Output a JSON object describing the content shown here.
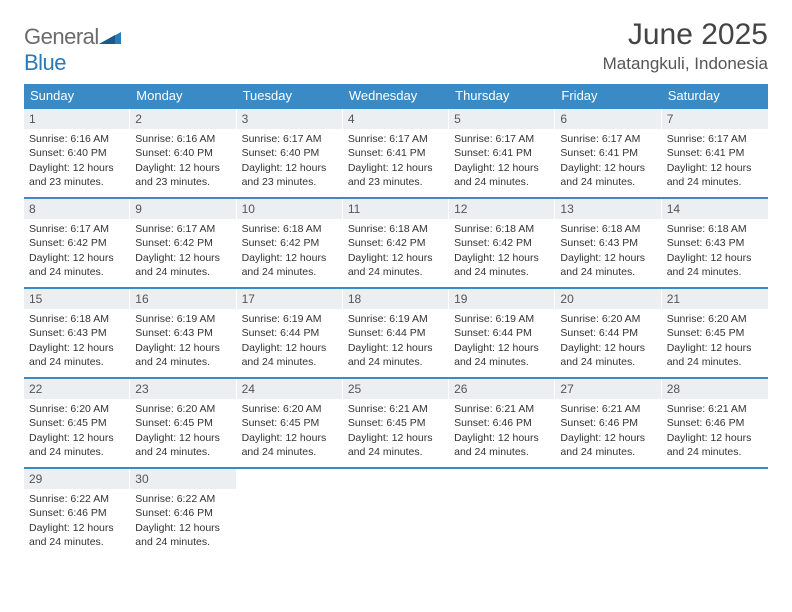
{
  "logo": {
    "text_gray": "General",
    "text_blue": "Blue"
  },
  "header": {
    "title": "June 2025",
    "location": "Matangkuli, Indonesia"
  },
  "colors": {
    "header_bg": "#3a8ac6",
    "row_border": "#3a8ac6",
    "daynum_bg": "#eceff1",
    "logo_gray": "#6b6b6b",
    "logo_blue": "#2a7ab8"
  },
  "weekdays": [
    "Sunday",
    "Monday",
    "Tuesday",
    "Wednesday",
    "Thursday",
    "Friday",
    "Saturday"
  ],
  "weeks": [
    [
      {
        "n": "1",
        "sr": "Sunrise: 6:16 AM",
        "ss": "Sunset: 6:40 PM",
        "dl": "Daylight: 12 hours and 23 minutes."
      },
      {
        "n": "2",
        "sr": "Sunrise: 6:16 AM",
        "ss": "Sunset: 6:40 PM",
        "dl": "Daylight: 12 hours and 23 minutes."
      },
      {
        "n": "3",
        "sr": "Sunrise: 6:17 AM",
        "ss": "Sunset: 6:40 PM",
        "dl": "Daylight: 12 hours and 23 minutes."
      },
      {
        "n": "4",
        "sr": "Sunrise: 6:17 AM",
        "ss": "Sunset: 6:41 PM",
        "dl": "Daylight: 12 hours and 23 minutes."
      },
      {
        "n": "5",
        "sr": "Sunrise: 6:17 AM",
        "ss": "Sunset: 6:41 PM",
        "dl": "Daylight: 12 hours and 24 minutes."
      },
      {
        "n": "6",
        "sr": "Sunrise: 6:17 AM",
        "ss": "Sunset: 6:41 PM",
        "dl": "Daylight: 12 hours and 24 minutes."
      },
      {
        "n": "7",
        "sr": "Sunrise: 6:17 AM",
        "ss": "Sunset: 6:41 PM",
        "dl": "Daylight: 12 hours and 24 minutes."
      }
    ],
    [
      {
        "n": "8",
        "sr": "Sunrise: 6:17 AM",
        "ss": "Sunset: 6:42 PM",
        "dl": "Daylight: 12 hours and 24 minutes."
      },
      {
        "n": "9",
        "sr": "Sunrise: 6:17 AM",
        "ss": "Sunset: 6:42 PM",
        "dl": "Daylight: 12 hours and 24 minutes."
      },
      {
        "n": "10",
        "sr": "Sunrise: 6:18 AM",
        "ss": "Sunset: 6:42 PM",
        "dl": "Daylight: 12 hours and 24 minutes."
      },
      {
        "n": "11",
        "sr": "Sunrise: 6:18 AM",
        "ss": "Sunset: 6:42 PM",
        "dl": "Daylight: 12 hours and 24 minutes."
      },
      {
        "n": "12",
        "sr": "Sunrise: 6:18 AM",
        "ss": "Sunset: 6:42 PM",
        "dl": "Daylight: 12 hours and 24 minutes."
      },
      {
        "n": "13",
        "sr": "Sunrise: 6:18 AM",
        "ss": "Sunset: 6:43 PM",
        "dl": "Daylight: 12 hours and 24 minutes."
      },
      {
        "n": "14",
        "sr": "Sunrise: 6:18 AM",
        "ss": "Sunset: 6:43 PM",
        "dl": "Daylight: 12 hours and 24 minutes."
      }
    ],
    [
      {
        "n": "15",
        "sr": "Sunrise: 6:18 AM",
        "ss": "Sunset: 6:43 PM",
        "dl": "Daylight: 12 hours and 24 minutes."
      },
      {
        "n": "16",
        "sr": "Sunrise: 6:19 AM",
        "ss": "Sunset: 6:43 PM",
        "dl": "Daylight: 12 hours and 24 minutes."
      },
      {
        "n": "17",
        "sr": "Sunrise: 6:19 AM",
        "ss": "Sunset: 6:44 PM",
        "dl": "Daylight: 12 hours and 24 minutes."
      },
      {
        "n": "18",
        "sr": "Sunrise: 6:19 AM",
        "ss": "Sunset: 6:44 PM",
        "dl": "Daylight: 12 hours and 24 minutes."
      },
      {
        "n": "19",
        "sr": "Sunrise: 6:19 AM",
        "ss": "Sunset: 6:44 PM",
        "dl": "Daylight: 12 hours and 24 minutes."
      },
      {
        "n": "20",
        "sr": "Sunrise: 6:20 AM",
        "ss": "Sunset: 6:44 PM",
        "dl": "Daylight: 12 hours and 24 minutes."
      },
      {
        "n": "21",
        "sr": "Sunrise: 6:20 AM",
        "ss": "Sunset: 6:45 PM",
        "dl": "Daylight: 12 hours and 24 minutes."
      }
    ],
    [
      {
        "n": "22",
        "sr": "Sunrise: 6:20 AM",
        "ss": "Sunset: 6:45 PM",
        "dl": "Daylight: 12 hours and 24 minutes."
      },
      {
        "n": "23",
        "sr": "Sunrise: 6:20 AM",
        "ss": "Sunset: 6:45 PM",
        "dl": "Daylight: 12 hours and 24 minutes."
      },
      {
        "n": "24",
        "sr": "Sunrise: 6:20 AM",
        "ss": "Sunset: 6:45 PM",
        "dl": "Daylight: 12 hours and 24 minutes."
      },
      {
        "n": "25",
        "sr": "Sunrise: 6:21 AM",
        "ss": "Sunset: 6:45 PM",
        "dl": "Daylight: 12 hours and 24 minutes."
      },
      {
        "n": "26",
        "sr": "Sunrise: 6:21 AM",
        "ss": "Sunset: 6:46 PM",
        "dl": "Daylight: 12 hours and 24 minutes."
      },
      {
        "n": "27",
        "sr": "Sunrise: 6:21 AM",
        "ss": "Sunset: 6:46 PM",
        "dl": "Daylight: 12 hours and 24 minutes."
      },
      {
        "n": "28",
        "sr": "Sunrise: 6:21 AM",
        "ss": "Sunset: 6:46 PM",
        "dl": "Daylight: 12 hours and 24 minutes."
      }
    ],
    [
      {
        "n": "29",
        "sr": "Sunrise: 6:22 AM",
        "ss": "Sunset: 6:46 PM",
        "dl": "Daylight: 12 hours and 24 minutes."
      },
      {
        "n": "30",
        "sr": "Sunrise: 6:22 AM",
        "ss": "Sunset: 6:46 PM",
        "dl": "Daylight: 12 hours and 24 minutes."
      },
      null,
      null,
      null,
      null,
      null
    ]
  ]
}
